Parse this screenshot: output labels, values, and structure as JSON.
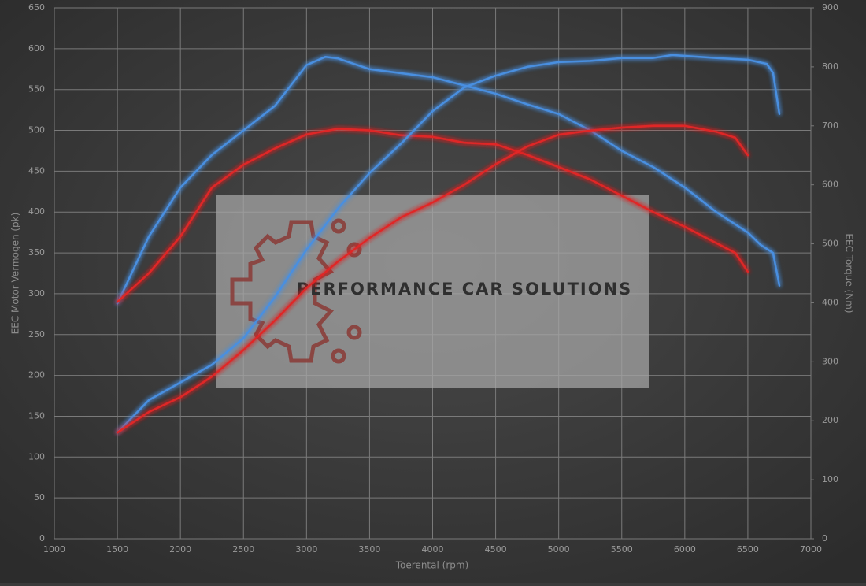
{
  "chart_data": {
    "type": "line",
    "xlabel": "Toerental (rpm)",
    "ylabel": "EEC Motor Vermogen (pk)",
    "y2label": "EEC Torque (Nm)",
    "watermark": "PERFORMANCE CAR SOLUTIONS",
    "xlim": [
      1000,
      7000
    ],
    "xticks": [
      1000,
      1500,
      2000,
      2500,
      3000,
      3500,
      4000,
      4500,
      5000,
      5500,
      6000,
      6500,
      7000
    ],
    "ylim": [
      0,
      650
    ],
    "yticks": [
      0,
      50,
      100,
      150,
      200,
      250,
      300,
      350,
      400,
      450,
      500,
      550,
      600,
      650
    ],
    "y2lim": [
      0,
      900
    ],
    "y2ticks": [
      0,
      100,
      200,
      300,
      400,
      500,
      600,
      700,
      800,
      900
    ],
    "grid": true,
    "series": [
      {
        "color": "#4a8fe0",
        "x": [
          1500,
          1750,
          2000,
          2250,
          2500,
          2750,
          3000,
          3150,
          3250,
          3500,
          3750,
          4000,
          4250,
          4500,
          4750,
          5000,
          5250,
          5500,
          5750,
          6000,
          6250,
          6500,
          6600,
          6700,
          6750
        ],
        "values": [
          288,
          370,
          430,
          470,
          500,
          530,
          580,
          590,
          588,
          575,
          570,
          565,
          555,
          545,
          532,
          520,
          500,
          475,
          455,
          430,
          400,
          375,
          360,
          350,
          310
        ]
      },
      {
        "color": "#e02828",
        "x": [
          1500,
          1750,
          2000,
          2250,
          2500,
          2750,
          3000,
          3250,
          3500,
          3750,
          4000,
          4250,
          4500,
          4750,
          5000,
          5250,
          5500,
          5750,
          6000,
          6250,
          6400,
          6500
        ],
        "values": [
          290,
          325,
          370,
          430,
          458,
          478,
          495,
          502,
          500,
          494,
          492,
          485,
          483,
          470,
          455,
          440,
          420,
          400,
          382,
          362,
          350,
          327
        ]
      },
      {
        "color": "#4a8fe0",
        "axis": "y2",
        "x": [
          1500,
          1750,
          2000,
          2250,
          2500,
          2750,
          3000,
          3250,
          3500,
          3750,
          4000,
          4250,
          4500,
          4750,
          5000,
          5250,
          5500,
          5750,
          5900,
          6250,
          6500,
          6650,
          6700,
          6750
        ],
        "values": [
          180,
          235,
          265,
          295,
          340,
          410,
          490,
          560,
          620,
          670,
          725,
          765,
          785,
          800,
          808,
          810,
          815,
          815,
          820,
          815,
          812,
          805,
          790,
          720
        ]
      },
      {
        "color": "#e02828",
        "axis": "y2",
        "x": [
          1500,
          1750,
          2000,
          2250,
          2500,
          2750,
          3000,
          3250,
          3500,
          3750,
          4000,
          4250,
          4500,
          4750,
          5000,
          5250,
          5500,
          5750,
          6000,
          6250,
          6400,
          6500
        ],
        "values": [
          180,
          215,
          240,
          275,
          320,
          370,
          425,
          470,
          510,
          545,
          570,
          600,
          635,
          665,
          685,
          692,
          697,
          700,
          700,
          690,
          680,
          650
        ]
      }
    ]
  }
}
